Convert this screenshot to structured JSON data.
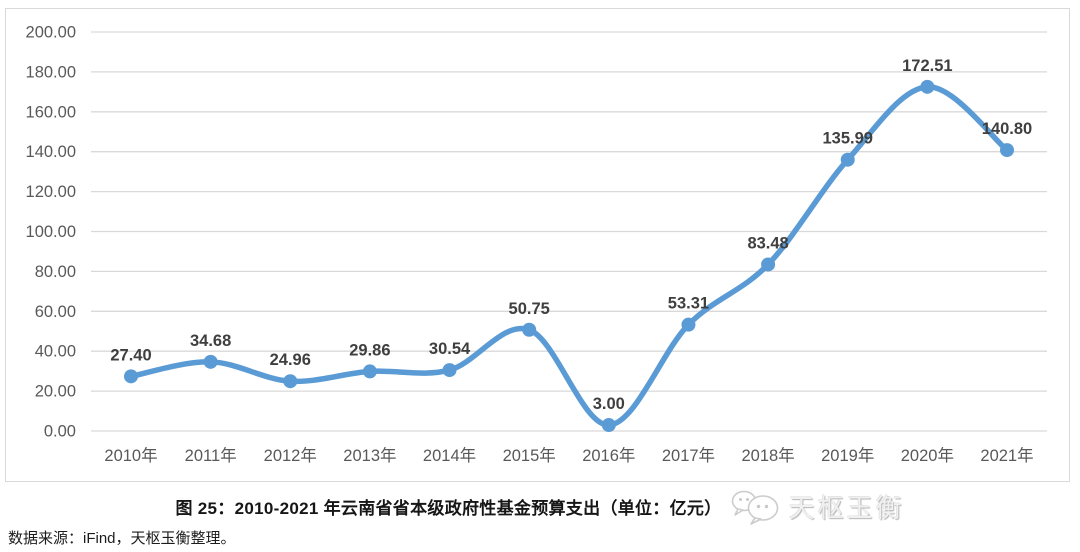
{
  "chart_data": {
    "type": "line",
    "title": "图 25：2010-2021 年云南省省本级政府性基金预算支出（单位：亿元）",
    "categories": [
      "2010年",
      "2011年",
      "2012年",
      "2013年",
      "2014年",
      "2015年",
      "2016年",
      "2017年",
      "2018年",
      "2019年",
      "2020年",
      "2021年"
    ],
    "values": [
      27.4,
      34.68,
      24.96,
      29.86,
      30.54,
      50.75,
      3.0,
      53.31,
      83.48,
      135.99,
      172.51,
      140.8
    ],
    "point_labels": [
      "27.40",
      "34.68",
      "24.96",
      "29.86",
      "30.54",
      "50.75",
      "3.00",
      "53.31",
      "83.48",
      "135.99",
      "172.51",
      "140.80"
    ],
    "y_ticks": [
      "0.00",
      "20.00",
      "40.00",
      "60.00",
      "80.00",
      "100.00",
      "120.00",
      "140.00",
      "160.00",
      "180.00",
      "200.00"
    ],
    "ylim": [
      0,
      200
    ],
    "xlabel": "",
    "ylabel": "",
    "grid": true,
    "legend_position": "none",
    "smooth": true,
    "line_color": "#5b9bd5",
    "marker_color": "#5b9bd5",
    "grid_color": "#d9d9d9",
    "frame_color": "#d9d9d9",
    "axis_label_color": "#595959",
    "data_label_color": "#3f3f3f"
  },
  "source_note": "数据来源：iFind，天枢玉衡整理。",
  "watermark": {
    "icon": "wechat-icon",
    "text": "天枢玉衡"
  }
}
